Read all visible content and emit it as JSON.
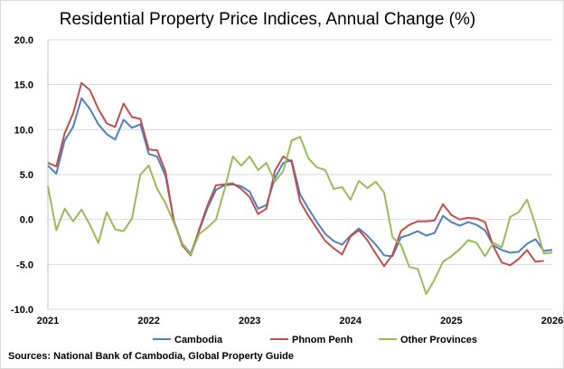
{
  "chart_data": {
    "type": "line",
    "title": "Residential Property Price Indices, Annual Change (%)",
    "xlabel": "",
    "ylabel": "",
    "ylim": [
      -10,
      20
    ],
    "xlim": [
      2021,
      2026
    ],
    "y_ticks": [
      "20.0",
      "15.0",
      "10.0",
      "5.0",
      "0.0",
      "-5.0",
      "-10.0"
    ],
    "y_tick_values": [
      20,
      15,
      10,
      5,
      0,
      -5,
      -10
    ],
    "x_ticks": [
      "2021",
      "2022",
      "2023",
      "2024",
      "2025",
      "2026"
    ],
    "x_tick_values": [
      2021,
      2022,
      2023,
      2024,
      2025,
      2026
    ],
    "grid": "horizontal",
    "legend_position": "bottom",
    "x_start": 2021.0,
    "x_step": 0.08333,
    "series": [
      {
        "name": "Cambodia",
        "color": "#4f81bd",
        "values": [
          6.0,
          5.1,
          8.8,
          10.3,
          13.5,
          12.3,
          10.6,
          9.5,
          8.9,
          11.1,
          10.2,
          10.6,
          7.3,
          7.0,
          4.8,
          -0.2,
          -2.7,
          -3.8,
          -1.2,
          1.3,
          3.3,
          3.8,
          3.9,
          3.7,
          3.1,
          1.2,
          1.6,
          4.6,
          6.3,
          6.6,
          2.8,
          1.2,
          -0.3,
          -1.6,
          -2.4,
          -2.8,
          -1.8,
          -1.0,
          -1.8,
          -2.8,
          -4.0,
          -4.1,
          -2.0,
          -1.7,
          -1.3,
          -1.8,
          -1.5,
          0.4,
          -0.3,
          -0.7,
          -0.3,
          -0.6,
          -1.2,
          -2.9,
          -3.4,
          -3.7,
          -3.6,
          -2.7,
          -2.2,
          -3.5,
          -3.4
        ]
      },
      {
        "name": "Phnom Penh",
        "color": "#c0504d",
        "values": [
          6.3,
          5.9,
          9.6,
          11.8,
          15.2,
          14.4,
          12.3,
          10.7,
          10.3,
          12.9,
          11.4,
          11.2,
          7.8,
          7.7,
          5.3,
          -0.3,
          -2.9,
          -4.0,
          -1.1,
          1.6,
          3.8,
          3.9,
          4.0,
          3.4,
          2.5,
          0.6,
          1.2,
          5.4,
          7.0,
          6.4,
          2.0,
          0.4,
          -1.0,
          -2.4,
          -3.2,
          -3.9,
          -1.9,
          -1.2,
          -2.3,
          -3.8,
          -5.2,
          -3.9,
          -1.3,
          -0.6,
          -0.2,
          -0.2,
          -0.1,
          1.7,
          0.5,
          0.0,
          0.2,
          0.1,
          -0.3,
          -3.0,
          -4.8,
          -5.1,
          -4.4,
          -3.4,
          -4.7,
          -4.6
        ]
      },
      {
        "name": "Other Provinces",
        "color": "#9bbb59",
        "values": [
          3.7,
          -1.2,
          1.2,
          -0.2,
          1.1,
          -0.6,
          -2.6,
          0.8,
          -1.1,
          -1.3,
          0.1,
          5.0,
          6.0,
          3.4,
          1.8,
          -0.4,
          -2.7,
          -3.9,
          -1.6,
          -0.9,
          0.0,
          3.3,
          7.0,
          6.0,
          7.0,
          5.5,
          6.3,
          4.2,
          5.4,
          8.8,
          9.2,
          6.8,
          5.8,
          5.5,
          3.4,
          3.6,
          2.2,
          4.3,
          3.5,
          4.2,
          3.0,
          -2.0,
          -2.8,
          -5.3,
          -5.5,
          -8.3,
          -6.7,
          -4.7,
          -4.1,
          -3.3,
          -2.3,
          -2.6,
          -4.1,
          -2.6,
          -3.1,
          0.3,
          0.8,
          2.2,
          -0.6,
          -3.8,
          -3.7
        ]
      }
    ],
    "source": "Sources: National Bank of Cambodia, Global Property Guide"
  }
}
